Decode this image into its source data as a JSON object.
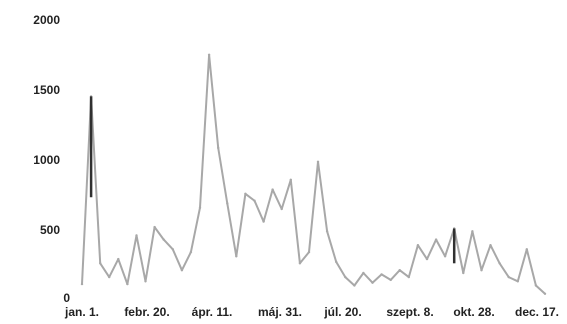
{
  "chart_data": {
    "type": "line",
    "title": "",
    "xlabel": "",
    "ylabel": "",
    "ylim": [
      0,
      2000
    ],
    "yticks": [
      "0",
      "500",
      "1000",
      "1500",
      "2000"
    ],
    "xticks": [
      "jan. 1.",
      "febr. 20.",
      "ápr. 11.",
      "máj. 31.",
      "júl. 20.",
      "szept. 8.",
      "okt. 28.",
      "dec. 17."
    ],
    "grid": false,
    "legend": "none",
    "colors": {
      "series": "#a8a8a8",
      "highlight": "#303030"
    },
    "series": [
      {
        "x": [
          "jan. 1.",
          "jan. 8.",
          "jan. 15.",
          "jan. 22.",
          "jan. 29.",
          "febr. 5.",
          "febr. 12.",
          "febr. 20.",
          "febr. 27.",
          "márc. 6.",
          "márc. 13.",
          "márc. 20.",
          "márc. 27.",
          "ápr. 3.",
          "ápr. 11.",
          "ápr. 18.",
          "ápr. 25.",
          "máj. 2.",
          "máj. 9.",
          "máj. 16.",
          "máj. 23.",
          "máj. 31.",
          "jún. 7.",
          "jún. 14.",
          "jún. 21.",
          "jún. 28.",
          "júl. 5.",
          "júl. 12.",
          "júl. 20.",
          "júl. 27.",
          "aug. 3.",
          "aug. 10.",
          "aug. 17.",
          "aug. 24.",
          "aug. 31.",
          "szept. 8.",
          "szept. 15.",
          "szept. 22.",
          "szept. 29.",
          "okt. 6.",
          "okt. 13.",
          "okt. 20.",
          "okt. 28.",
          "nov. 4.",
          "nov. 11.",
          "nov. 18.",
          "nov. 25.",
          "dec. 2.",
          "dec. 9.",
          "dec. 17.",
          "dec. 24.",
          "dec. 31."
        ],
        "values": [
          100,
          1450,
          250,
          150,
          280,
          100,
          450,
          120,
          510,
          420,
          350,
          200,
          330,
          650,
          1750,
          1080,
          680,
          300,
          750,
          700,
          550,
          780,
          640,
          850,
          250,
          330,
          980,
          480,
          260,
          150,
          90,
          180,
          110,
          170,
          130,
          200,
          150,
          380,
          280,
          420,
          300,
          500,
          180,
          480,
          200,
          380,
          250,
          150,
          120,
          350,
          90,
          30
        ]
      }
    ]
  }
}
